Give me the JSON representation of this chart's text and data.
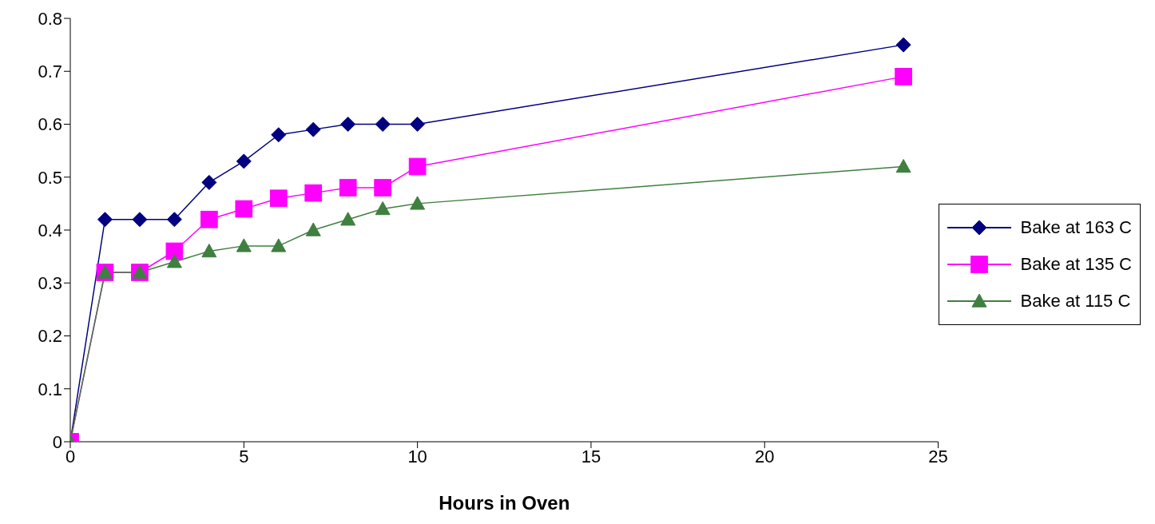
{
  "chart_data": {
    "type": "line",
    "xlabel": "Hours in Oven",
    "x": [
      0,
      1,
      2,
      3,
      4,
      5,
      6,
      7,
      8,
      9,
      10,
      24
    ],
    "series": [
      {
        "name": "Bake at 163 C",
        "color": "#000080",
        "marker": "diamond",
        "values": [
          0,
          0.42,
          0.42,
          0.42,
          0.49,
          0.53,
          0.58,
          0.59,
          0.6,
          0.6,
          0.6,
          0.75
        ]
      },
      {
        "name": "Bake at 135 C",
        "color": "#ff00ff",
        "marker": "square",
        "values": [
          0,
          0.32,
          0.32,
          0.36,
          0.42,
          0.44,
          0.46,
          0.47,
          0.48,
          0.48,
          0.52,
          0.69
        ]
      },
      {
        "name": "Bake at 115 C",
        "color": "#3f7f3f",
        "marker": "triangle",
        "values": [
          0,
          0.32,
          0.32,
          0.34,
          0.36,
          0.37,
          0.37,
          0.4,
          0.42,
          0.44,
          0.45,
          0.52
        ]
      }
    ],
    "xlim": [
      0,
      25
    ],
    "xticks": [
      0,
      5,
      10,
      15,
      20,
      25
    ],
    "ylim": [
      0,
      0.8
    ],
    "yticks": [
      0,
      0.1,
      0.2,
      0.3,
      0.4,
      0.5,
      0.6,
      0.7,
      0.8
    ],
    "grid": false,
    "legend": "right",
    "line_style": "solid"
  }
}
